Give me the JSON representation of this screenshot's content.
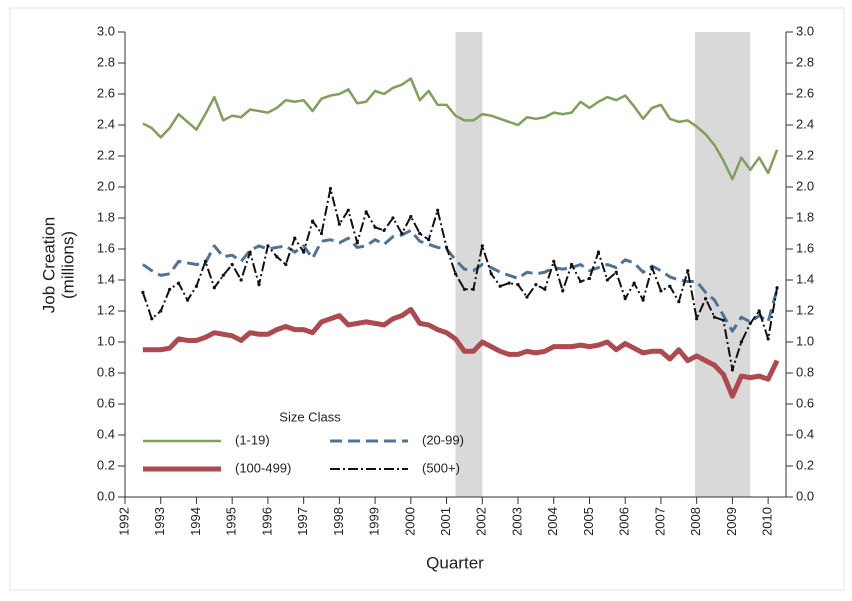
{
  "chart_data": {
    "type": "line",
    "ylabel": "Job Creation",
    "ylabel_unit": "(millions)",
    "xlabel": "Quarter",
    "legend_title": "Size Class",
    "x": [
      1992.5,
      1992.75,
      1993,
      1993.25,
      1993.5,
      1993.75,
      1994,
      1994.25,
      1994.5,
      1994.75,
      1995,
      1995.25,
      1995.5,
      1995.75,
      1996,
      1996.25,
      1996.5,
      1996.75,
      1997,
      1997.25,
      1997.5,
      1997.75,
      1998,
      1998.25,
      1998.5,
      1998.75,
      1999,
      1999.25,
      1999.5,
      1999.75,
      2000,
      2000.25,
      2000.5,
      2000.75,
      2001,
      2001.25,
      2001.5,
      2001.75,
      2002,
      2002.25,
      2002.5,
      2002.75,
      2003,
      2003.25,
      2003.5,
      2003.75,
      2004,
      2004.25,
      2004.5,
      2004.75,
      2005,
      2005.25,
      2005.5,
      2005.75,
      2006,
      2006.25,
      2006.5,
      2006.75,
      2007,
      2007.25,
      2007.5,
      2007.75,
      2008,
      2008.25,
      2008.5,
      2008.75,
      2009,
      2009.25,
      2009.5,
      2009.75,
      2010,
      2010.25
    ],
    "series": [
      {
        "name": "(1-19)",
        "color": "#7f9f5a",
        "style": "solid",
        "values": [
          2.41,
          2.38,
          2.32,
          2.38,
          2.47,
          2.42,
          2.37,
          2.47,
          2.58,
          2.43,
          2.46,
          2.45,
          2.5,
          2.49,
          2.48,
          2.51,
          2.56,
          2.55,
          2.56,
          2.49,
          2.57,
          2.59,
          2.6,
          2.63,
          2.54,
          2.55,
          2.62,
          2.6,
          2.64,
          2.66,
          2.7,
          2.56,
          2.62,
          2.53,
          2.53,
          2.46,
          2.43,
          2.43,
          2.47,
          2.46,
          2.44,
          2.42,
          2.4,
          2.45,
          2.44,
          2.45,
          2.48,
          2.47,
          2.48,
          2.55,
          2.51,
          2.55,
          2.58,
          2.56,
          2.59,
          2.52,
          2.44,
          2.51,
          2.53,
          2.44,
          2.42,
          2.43,
          2.39,
          2.34,
          2.27,
          2.17,
          2.05,
          2.19,
          2.11,
          2.19,
          2.09,
          2.24
        ]
      },
      {
        "name": "(20-99)",
        "color": "#4f7396",
        "style": "dashed",
        "values": [
          1.5,
          1.46,
          1.43,
          1.44,
          1.52,
          1.51,
          1.5,
          1.51,
          1.62,
          1.55,
          1.56,
          1.52,
          1.59,
          1.62,
          1.6,
          1.61,
          1.62,
          1.58,
          1.62,
          1.54,
          1.65,
          1.66,
          1.64,
          1.67,
          1.61,
          1.62,
          1.66,
          1.63,
          1.68,
          1.69,
          1.72,
          1.65,
          1.63,
          1.61,
          1.6,
          1.53,
          1.47,
          1.46,
          1.5,
          1.48,
          1.45,
          1.43,
          1.41,
          1.45,
          1.44,
          1.45,
          1.48,
          1.47,
          1.48,
          1.5,
          1.46,
          1.48,
          1.5,
          1.48,
          1.53,
          1.51,
          1.45,
          1.49,
          1.46,
          1.42,
          1.4,
          1.39,
          1.39,
          1.32,
          1.27,
          1.17,
          1.07,
          1.16,
          1.13,
          1.17,
          1.13,
          1.34
        ]
      },
      {
        "name": "(100-499)",
        "color": "#ad4a4f",
        "style": "thick",
        "values": [
          0.95,
          0.95,
          0.95,
          0.96,
          1.02,
          1.01,
          1.01,
          1.03,
          1.06,
          1.05,
          1.04,
          1.01,
          1.06,
          1.05,
          1.05,
          1.08,
          1.1,
          1.08,
          1.08,
          1.06,
          1.13,
          1.15,
          1.17,
          1.11,
          1.12,
          1.13,
          1.12,
          1.11,
          1.15,
          1.17,
          1.21,
          1.12,
          1.11,
          1.08,
          1.06,
          1.02,
          0.94,
          0.94,
          1.0,
          0.97,
          0.94,
          0.92,
          0.92,
          0.94,
          0.93,
          0.94,
          0.97,
          0.97,
          0.97,
          0.98,
          0.97,
          0.98,
          1.0,
          0.95,
          0.99,
          0.96,
          0.93,
          0.94,
          0.94,
          0.89,
          0.95,
          0.88,
          0.91,
          0.88,
          0.85,
          0.79,
          0.65,
          0.78,
          0.77,
          0.78,
          0.76,
          0.88
        ]
      },
      {
        "name": "(500+)",
        "color": "#111111",
        "style": "dashdot",
        "values": [
          1.32,
          1.15,
          1.2,
          1.34,
          1.38,
          1.27,
          1.36,
          1.52,
          1.35,
          1.43,
          1.5,
          1.4,
          1.58,
          1.37,
          1.62,
          1.55,
          1.5,
          1.67,
          1.58,
          1.78,
          1.7,
          1.99,
          1.76,
          1.85,
          1.64,
          1.84,
          1.74,
          1.72,
          1.8,
          1.7,
          1.81,
          1.7,
          1.66,
          1.85,
          1.61,
          1.44,
          1.34,
          1.34,
          1.62,
          1.44,
          1.36,
          1.38,
          1.37,
          1.29,
          1.37,
          1.34,
          1.52,
          1.33,
          1.5,
          1.39,
          1.41,
          1.58,
          1.4,
          1.45,
          1.28,
          1.38,
          1.27,
          1.48,
          1.33,
          1.36,
          1.26,
          1.46,
          1.15,
          1.28,
          1.16,
          1.14,
          0.82,
          1.0,
          1.12,
          1.2,
          1.02,
          1.35
        ]
      }
    ],
    "shaded": [
      [
        2001.25,
        2002
      ],
      [
        2007.95,
        2009.5
      ]
    ],
    "shade_color": "#d9d9d9",
    "xlim": [
      1992,
      2010.5
    ],
    "ylim": [
      0,
      3
    ],
    "xticks": [
      1992,
      1993,
      1994,
      1995,
      1996,
      1997,
      1998,
      1999,
      2000,
      2001,
      2002,
      2003,
      2004,
      2005,
      2006,
      2007,
      2008,
      2009,
      2010
    ],
    "yticks": [
      {
        "value": 0,
        "label": "0.0"
      },
      0.2,
      0.4,
      0.6,
      0.8,
      {
        "value": 1,
        "label": "1.0"
      },
      1.2,
      1.4,
      1.6,
      1.8,
      {
        "value": 2,
        "label": "2.0"
      },
      2.2,
      2.4,
      2.6,
      2.8,
      {
        "value": 3,
        "label": "3.0"
      }
    ],
    "right_axis": true
  }
}
